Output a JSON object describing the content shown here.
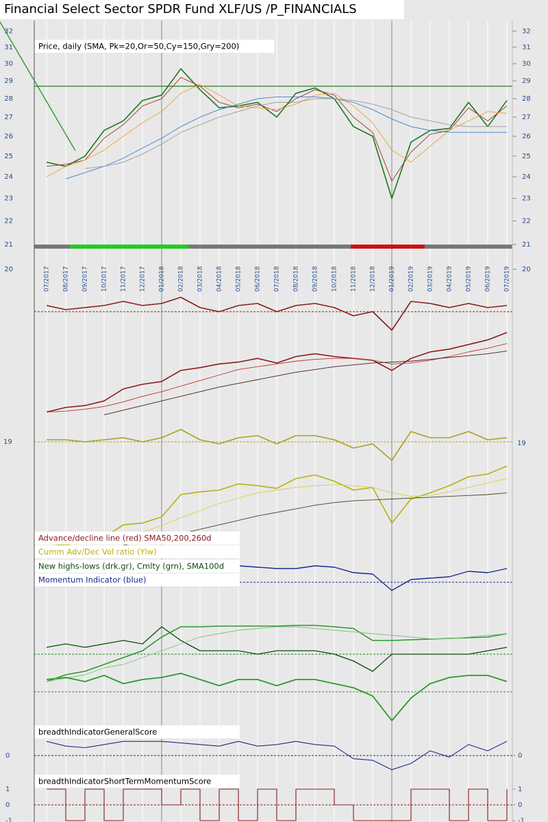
{
  "chart_data": [
    {
      "type": "line",
      "title": "Financial Select Sector SPDR Fund XLF/US /P_FINANCIALS",
      "label": "Price, daily (SMA, Pk=20,Or=50,Cy=150,Gry=200)",
      "x": [
        "07/2017",
        "08/2017",
        "09/2017",
        "10/2017",
        "11/2017",
        "12/2017",
        "01/2018",
        "02/2018",
        "03/2018",
        "04/2018",
        "05/2018",
        "06/2018",
        "07/2018",
        "08/2018",
        "09/2018",
        "10/2018",
        "11/2018",
        "12/2018",
        "01/2019",
        "02/2019",
        "03/2019",
        "04/2019",
        "05/2019",
        "06/2019",
        "07/2019"
      ],
      "log_scale": true,
      "ylim": [
        20,
        32.8
      ],
      "yticks": [
        20,
        21,
        22,
        23,
        24,
        25,
        26,
        27,
        28,
        29,
        30,
        31,
        32
      ],
      "reference_line": 28.7,
      "reference_color": "#2a8a2a",
      "series": [
        {
          "color": "#1a7a1a",
          "width": 1.6,
          "values": [
            24.7,
            24.5,
            25.0,
            26.3,
            26.8,
            27.9,
            28.2,
            29.7,
            28.5,
            27.5,
            27.6,
            27.8,
            27.0,
            28.3,
            28.6,
            28.0,
            26.5,
            26.0,
            23.0,
            25.7,
            26.3,
            26.4,
            27.8,
            26.5,
            27.9
          ]
        },
        {
          "color": "#a0302a",
          "width": 0.9,
          "values": [
            24.5,
            24.6,
            24.8,
            25.9,
            26.6,
            27.6,
            28.0,
            29.2,
            28.7,
            27.8,
            27.5,
            27.7,
            27.3,
            28.0,
            28.5,
            28.2,
            27.0,
            26.2,
            23.8,
            25.2,
            26.1,
            26.3,
            27.5,
            26.8,
            27.6
          ]
        },
        {
          "color": "#f0a030",
          "width": 0.9,
          "values": [
            24.0,
            24.5,
            24.8,
            25.3,
            26.0,
            26.7,
            27.3,
            28.3,
            28.8,
            28.2,
            27.6,
            27.5,
            27.4,
            27.7,
            28.2,
            28.3,
            27.6,
            26.7,
            25.3,
            24.7,
            25.5,
            26.3,
            26.8,
            27.3,
            27.2
          ]
        },
        {
          "color": "#3a7fd0",
          "width": 0.9,
          "values": [
            null,
            23.9,
            24.2,
            24.5,
            24.9,
            25.4,
            25.9,
            26.5,
            27.0,
            27.4,
            27.7,
            28.0,
            28.1,
            28.1,
            28.1,
            28.0,
            27.8,
            27.4,
            26.9,
            26.5,
            26.3,
            26.2,
            26.2,
            26.2,
            26.2
          ]
        },
        {
          "color": "#999999",
          "width": 0.9,
          "values": [
            null,
            null,
            24.4,
            24.5,
            24.7,
            25.1,
            25.6,
            26.2,
            26.6,
            27.0,
            27.3,
            27.6,
            27.8,
            27.8,
            28.0,
            28.0,
            27.9,
            27.7,
            27.4,
            27.0,
            26.8,
            26.6,
            26.5,
            26.5,
            26.5
          ]
        }
      ]
    },
    {
      "type": "line",
      "ylim": [
        -1,
        1
      ],
      "reference_line": 0,
      "reference_color": "#8b1a1a",
      "series": [
        {
          "color": "#8b1a1a",
          "width": 1.6,
          "values": [
            0.3,
            0.1,
            0.2,
            0.3,
            0.5,
            0.3,
            0.4,
            0.7,
            0.2,
            0.0,
            0.3,
            0.4,
            0.0,
            0.3,
            0.4,
            0.2,
            -0.2,
            0.0,
            -0.9,
            0.5,
            0.4,
            0.2,
            0.4,
            0.2,
            0.3
          ]
        }
      ]
    },
    {
      "type": "line",
      "ylim": [
        0,
        10
      ],
      "label": "Advance/decline line (red) SMA50,200,260d",
      "series": [
        {
          "color": "#8b1a1a",
          "width": 1.6,
          "values": [
            1.0,
            1.5,
            1.7,
            2.2,
            3.5,
            4.0,
            4.3,
            5.5,
            5.8,
            6.2,
            6.4,
            6.8,
            6.3,
            7.0,
            7.3,
            7.0,
            6.8,
            6.6,
            5.5,
            6.8,
            7.5,
            7.8,
            8.3,
            8.8,
            9.6
          ]
        },
        {
          "color": "#c0302a",
          "width": 0.9,
          "values": [
            1.0,
            1.1,
            1.3,
            1.6,
            2.1,
            2.7,
            3.2,
            3.8,
            4.4,
            5.0,
            5.6,
            5.9,
            6.2,
            6.5,
            6.7,
            6.8,
            6.8,
            6.6,
            6.2,
            6.3,
            6.6,
            7.0,
            7.5,
            7.9,
            8.4
          ]
        },
        {
          "color": "#4a1a10",
          "width": 0.9,
          "values": [
            null,
            null,
            null,
            0.7,
            1.2,
            1.7,
            2.2,
            2.7,
            3.2,
            3.7,
            4.1,
            4.5,
            4.9,
            5.3,
            5.6,
            5.9,
            6.1,
            6.3,
            6.4,
            6.5,
            6.7,
            6.9,
            7.1,
            7.3,
            7.6
          ]
        }
      ]
    },
    {
      "type": "line",
      "ylim": [
        -1,
        1
      ],
      "reference_line": 0,
      "reference_color": "#a8a020",
      "annotation": "19",
      "series": [
        {
          "color": "#a8a020",
          "width": 1.6,
          "values": [
            0.1,
            0.1,
            0.0,
            0.1,
            0.2,
            0.0,
            0.2,
            0.6,
            0.1,
            -0.1,
            0.2,
            0.3,
            -0.1,
            0.3,
            0.3,
            0.1,
            -0.3,
            -0.1,
            -0.9,
            0.5,
            0.2,
            0.2,
            0.5,
            0.1,
            0.2
          ]
        }
      ]
    },
    {
      "type": "line",
      "ylim": [
        0,
        10
      ],
      "label": "Cumm Adv/Dec Vol ratio (Ylw)",
      "series": [
        {
          "color": "#b8b010",
          "width": 1.6,
          "values": [
            0.5,
            0.3,
            0.8,
            1.2,
            2.6,
            2.8,
            3.5,
            6.0,
            6.3,
            6.5,
            7.2,
            7.0,
            6.7,
            7.8,
            8.2,
            7.5,
            6.5,
            6.8,
            2.8,
            5.5,
            6.2,
            7.0,
            8.0,
            8.3,
            9.2
          ]
        },
        {
          "color": "#d8d040",
          "width": 0.9,
          "values": [
            0.5,
            0.5,
            0.6,
            0.8,
            1.3,
            1.8,
            2.5,
            3.4,
            4.2,
            5.0,
            5.6,
            6.2,
            6.5,
            6.8,
            7.0,
            7.1,
            7.0,
            6.8,
            6.2,
            5.8,
            5.9,
            6.3,
            6.8,
            7.3,
            7.8
          ]
        },
        {
          "color": "#4a4020",
          "width": 0.9,
          "values": [
            null,
            null,
            null,
            null,
            0.3,
            0.7,
            1.1,
            1.6,
            2.1,
            2.6,
            3.1,
            3.6,
            4.0,
            4.4,
            4.8,
            5.1,
            5.3,
            5.4,
            5.5,
            5.6,
            5.7,
            5.8,
            5.9,
            6.0,
            6.2
          ]
        }
      ]
    },
    {
      "type": "line",
      "ylim": [
        -1,
        1
      ],
      "reference_line": 0,
      "reference_color": "#1a2a8b",
      "label": "Momentum Indicator (blue)",
      "series": [
        {
          "color": "#1a2a8b",
          "width": 1.4,
          "values": [
            0.7,
            0.7,
            0.7,
            0.7,
            0.7,
            0.7,
            0.7,
            0.7,
            0.7,
            0.6,
            0.6,
            0.55,
            0.5,
            0.5,
            0.6,
            0.55,
            0.35,
            0.3,
            -0.3,
            0.1,
            0.15,
            0.2,
            0.4,
            0.35,
            0.5
          ]
        }
      ]
    },
    {
      "type": "line",
      "ylim": [
        -1,
        1
      ],
      "reference_line": 0,
      "reference_color": "#1a8a1a",
      "label": "New highs-lows (drk.gr), Cmlty (grn), SMA100d",
      "series": [
        {
          "color": "#0d4a0d",
          "width": 1.3,
          "values": [
            0.2,
            0.3,
            0.2,
            0.3,
            0.4,
            0.3,
            0.8,
            0.4,
            0.1,
            0.1,
            0.1,
            0.0,
            0.1,
            0.1,
            0.1,
            0.0,
            -0.2,
            -0.5,
            0.0,
            0.0,
            0.0,
            0.0,
            0.0,
            0.1,
            0.2
          ]
        },
        {
          "color": "#2a9a2a",
          "width": 1.6,
          "values": [
            -0.8,
            -0.6,
            -0.5,
            -0.3,
            -0.1,
            0.1,
            0.5,
            0.8,
            0.8,
            0.82,
            0.82,
            0.82,
            0.82,
            0.84,
            0.84,
            0.8,
            0.75,
            0.4,
            0.4,
            0.42,
            0.44,
            0.46,
            0.48,
            0.5,
            0.6
          ]
        },
        {
          "color": "#80c080",
          "width": 0.9,
          "values": [
            -0.8,
            -0.7,
            -0.6,
            -0.4,
            -0.3,
            -0.1,
            0.1,
            0.3,
            0.5,
            0.6,
            0.7,
            0.75,
            0.8,
            0.8,
            0.75,
            0.7,
            0.65,
            0.6,
            0.55,
            0.5,
            0.45,
            0.45,
            0.5,
            0.55,
            0.6
          ]
        }
      ]
    },
    {
      "type": "line",
      "ylim": [
        -1.5,
        1.5
      ],
      "reference_line": 0,
      "reference_color": "#2a9a2a",
      "series": [
        {
          "color": "#2a9a2a",
          "width": 1.8,
          "values": [
            0.6,
            0.7,
            0.5,
            0.8,
            0.4,
            0.6,
            0.7,
            0.9,
            0.6,
            0.3,
            0.6,
            0.6,
            0.3,
            0.6,
            0.6,
            0.4,
            0.2,
            -0.2,
            -1.4,
            -0.3,
            0.4,
            0.7,
            0.8,
            0.8,
            0.5
          ]
        }
      ]
    },
    {
      "type": "line",
      "ylim": [
        -1,
        1
      ],
      "yticks": [
        0
      ],
      "reference_line": 0,
      "reference_color": "#1a2a8b",
      "label": "breadthIndicatorGeneralScore",
      "series": [
        {
          "color": "#1a2a8b",
          "width": 1.1,
          "values": [
            0.9,
            0.6,
            0.5,
            0.7,
            0.9,
            0.9,
            0.9,
            0.8,
            0.7,
            0.6,
            0.9,
            0.6,
            0.7,
            0.9,
            0.7,
            0.6,
            -0.2,
            -0.3,
            -0.9,
            -0.5,
            0.3,
            -0.1,
            0.7,
            0.3,
            0.9
          ]
        }
      ]
    },
    {
      "type": "line",
      "ylim": [
        -1,
        1
      ],
      "yticks": [
        1,
        0,
        -1
      ],
      "reference_line": 0,
      "reference_color": "#8b1a1a",
      "label": "breadthIndicatorShortTermMomentumScore",
      "series": [
        {
          "color": "#8b1a1a",
          "width": 1.1,
          "step": true,
          "values": [
            1,
            -1,
            1,
            -1,
            1,
            1,
            0,
            1,
            -1,
            1,
            -1,
            1,
            -1,
            1,
            1,
            0,
            -1,
            -1,
            -1,
            1,
            1,
            -1,
            1,
            -1,
            1
          ]
        }
      ]
    }
  ]
}
